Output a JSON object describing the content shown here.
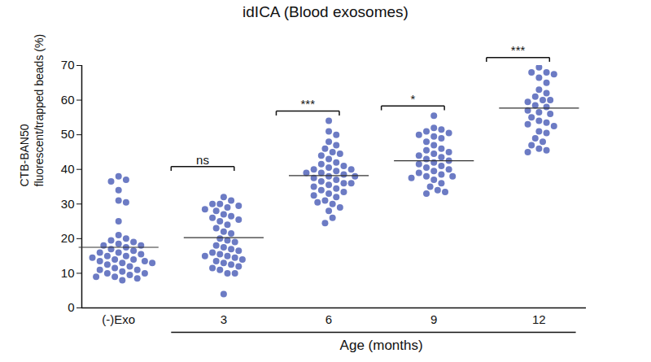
{
  "chart_data": {
    "type": "scatter",
    "title": "idICA (Blood exosomes)",
    "y_label": "CTB-BAN50\nfluorescent/trapped beads (%)",
    "categories": [
      "(-)Exo",
      "3",
      "6",
      "9",
      "12"
    ],
    "values": [
      [
        38,
        37,
        36.5,
        34,
        31,
        30.5,
        25,
        21,
        20,
        19.5,
        19,
        18.5,
        18,
        18,
        17.5,
        17,
        16.5,
        16,
        16,
        15.5,
        15,
        15,
        14.5,
        14,
        14,
        13.5,
        13.5,
        13,
        13,
        12.5,
        12,
        11.5,
        11,
        11,
        10.5,
        10,
        10,
        9.5,
        9,
        9,
        8.5,
        8
      ],
      [
        32,
        31,
        30,
        30,
        29.5,
        29,
        28.5,
        28,
        27,
        26.5,
        26,
        25.5,
        25,
        24,
        23,
        22,
        21.5,
        20,
        19.5,
        19,
        18,
        17.5,
        17,
        16.5,
        16,
        15.5,
        15,
        15,
        14.5,
        14,
        13.5,
        13,
        12.5,
        12,
        11.5,
        11,
        10,
        10,
        4
      ],
      [
        54,
        51,
        50,
        48,
        47,
        46,
        45,
        44.5,
        44,
        43,
        42,
        41.5,
        41,
        40.5,
        40,
        40,
        39.5,
        39,
        39,
        38.5,
        38,
        38,
        37.5,
        37,
        36.5,
        36,
        36,
        35.5,
        35,
        34.5,
        34,
        33.5,
        33,
        32.5,
        32,
        31,
        30.5,
        30,
        29,
        28,
        26,
        24.5
      ],
      [
        55.5,
        52,
        51.5,
        51,
        50.5,
        50,
        49.5,
        49,
        48,
        47,
        46,
        45.5,
        45,
        44.5,
        44,
        43.5,
        43,
        42.5,
        42,
        41.5,
        41,
        40.5,
        40,
        39.5,
        39,
        38.5,
        38,
        38,
        37.5,
        37,
        36,
        35,
        34,
        33.5,
        33
      ],
      [
        69.5,
        68,
        68,
        67.5,
        66.5,
        65,
        63,
        62,
        61,
        60,
        60,
        59.5,
        58.5,
        58,
        57,
        56.5,
        56,
        55,
        54,
        53.5,
        53,
        52.5,
        51,
        50.5,
        49,
        48,
        47,
        46,
        45.5,
        45
      ]
    ],
    "means": [
      17.5,
      20.3,
      38.2,
      42.5,
      57.7
    ],
    "color": "#6c7bc4",
    "marker": "circle",
    "ylim": [
      0,
      70
    ],
    "yticks": [
      0,
      10,
      20,
      30,
      40,
      50,
      60,
      70
    ],
    "x_group_label": "Age (months)",
    "x_group": [
      "3",
      "6",
      "9",
      "12"
    ],
    "comparisons": [
      {
        "groups": [
          "(-)Exo",
          "3"
        ],
        "label": "ns"
      },
      {
        "groups": [
          "3",
          "6"
        ],
        "label": "***"
      },
      {
        "groups": [
          "6",
          "9"
        ],
        "label": "*"
      },
      {
        "groups": [
          "9",
          "12"
        ],
        "label": "***"
      }
    ],
    "grid": false
  }
}
